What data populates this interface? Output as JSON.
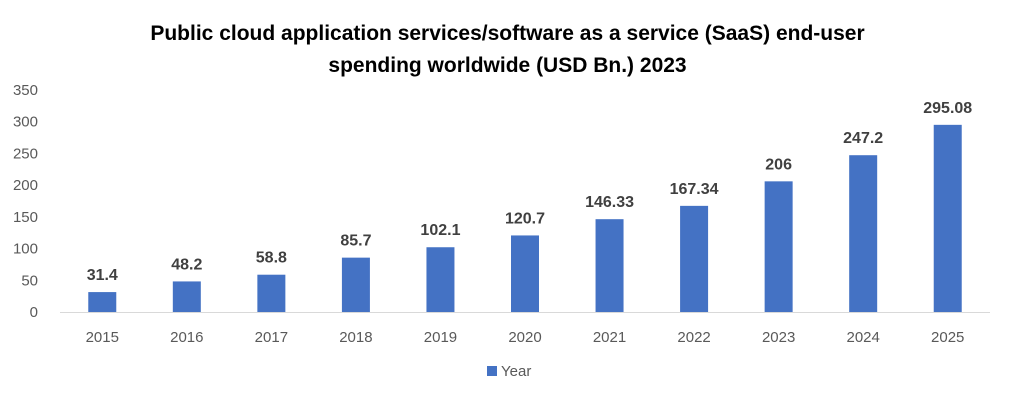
{
  "chart_data": {
    "type": "bar",
    "title_lines": [
      "Public cloud application services/software as a service (SaaS) end-user",
      "spending worldwide (USD Bn.) 2023"
    ],
    "categories": [
      "2015",
      "2016",
      "2017",
      "2018",
      "2019",
      "2020",
      "2021",
      "2022",
      "2023",
      "2024",
      "2025"
    ],
    "series": [
      {
        "name": "Year",
        "color": "#4472c4",
        "values": [
          31.4,
          48.2,
          58.8,
          85.7,
          102.1,
          120.7,
          146.33,
          167.34,
          206,
          247.2,
          295.08
        ],
        "labels": [
          "31.4",
          "48.2",
          "58.8",
          "85.7",
          "102.1",
          "120.7",
          "146.33",
          "167.34",
          "206",
          "247.2",
          "295.08"
        ]
      }
    ],
    "y_ticks": [
      "0",
      "50",
      "100",
      "150",
      "200",
      "250",
      "300",
      "350"
    ],
    "ylim": [
      0,
      350
    ],
    "grid": false,
    "legend_position": "bottom"
  }
}
